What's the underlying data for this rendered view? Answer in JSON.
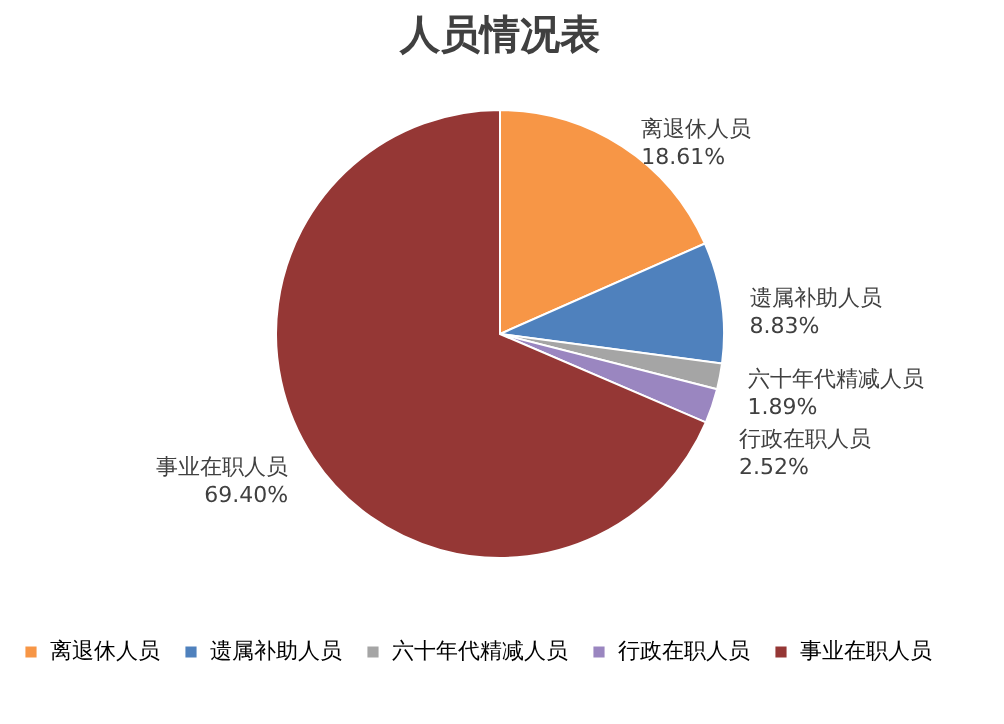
{
  "chart_data": {
    "type": "pie",
    "title": "人员情况表",
    "categories": [
      "离退休人员",
      "遗属补助人员",
      "六十年代精减人员",
      "行政在职人员",
      "事业在职人员"
    ],
    "values": [
      18.61,
      8.83,
      1.89,
      2.52,
      69.4
    ],
    "value_labels": [
      "18.61%",
      "8.83%",
      "1.89%",
      "2.52%",
      "69.40%"
    ],
    "colors": [
      "#f79646",
      "#4f81bd",
      "#a5a5a5",
      "#9a86c0",
      "#953735"
    ],
    "legend": "bottom"
  }
}
